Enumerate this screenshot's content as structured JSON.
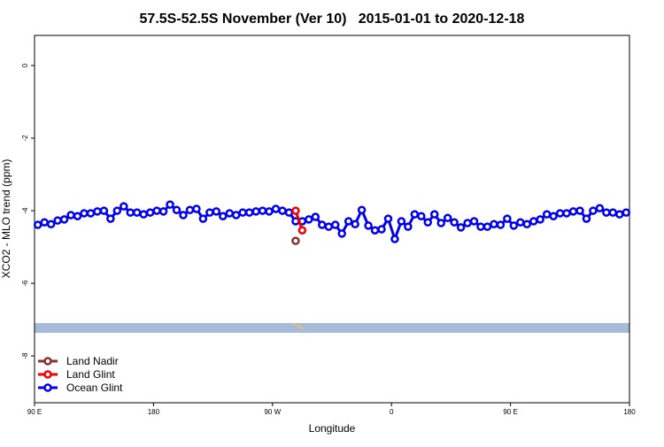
{
  "chart_data": {
    "type": "line",
    "title": "57.5S-52.5S November (Ver 10)   2015-01-01 to 2020-12-18",
    "xlabel": "Longitude",
    "ylabel": "XCO2 - MLO trend (ppm)",
    "xlim": [
      90,
      540
    ],
    "ylim": [
      -9.29,
      0.83
    ],
    "xticks": [
      {
        "value": 90,
        "label": "90 E"
      },
      {
        "value": 180,
        "label": "180"
      },
      {
        "value": 270,
        "label": "90 W"
      },
      {
        "value": 360,
        "label": "0"
      },
      {
        "value": 450,
        "label": "90 E"
      },
      {
        "value": 540,
        "label": "180"
      }
    ],
    "yticks": [
      0,
      -2,
      -4,
      -6,
      -8
    ],
    "legend": "bottom-left",
    "series": [
      {
        "name": "Land Nadir",
        "color": "#8b3030",
        "x": [
          287.5
        ],
        "values": [
          -4.83
        ]
      },
      {
        "name": "Land Glint",
        "color": "#ee0000",
        "x": [
          287.5,
          292.5
        ],
        "values": [
          -4.0,
          -4.54
        ]
      },
      {
        "name": "Ocean Glint",
        "color": "#0000ee",
        "x": [
          92.5,
          97.5,
          102.5,
          107.5,
          112.5,
          117.5,
          122.5,
          127.5,
          132.5,
          137.5,
          142.5,
          147.5,
          152.5,
          157.5,
          162.5,
          167.5,
          172.5,
          177.5,
          182.5,
          187.5,
          192.5,
          197.5,
          202.5,
          207.5,
          212.5,
          217.5,
          222.5,
          227.5,
          232.5,
          237.5,
          242.5,
          247.5,
          252.5,
          257.5,
          262.5,
          267.5,
          272.5,
          277.5,
          282.5,
          287.5,
          292.5,
          297.5,
          302.5,
          307.5,
          312.5,
          317.5,
          322.5,
          327.5,
          332.5,
          337.5,
          342.5,
          347.5,
          352.5,
          357.5,
          362.5,
          367.5,
          372.5,
          377.5,
          382.5,
          387.5,
          392.5,
          397.5,
          402.5,
          407.5,
          412.5,
          417.5,
          422.5,
          427.5,
          432.5,
          437.5,
          442.5,
          447.5,
          452.5,
          457.5,
          462.5,
          467.5,
          472.5,
          477.5,
          482.5,
          487.5,
          492.5,
          497.5,
          502.5,
          507.5,
          512.5,
          517.5,
          522.5,
          527.5,
          532.5,
          537.5
        ],
        "values": [
          -4.39,
          -4.32,
          -4.37,
          -4.27,
          -4.24,
          -4.12,
          -4.15,
          -4.07,
          -4.07,
          -4.02,
          -4.0,
          -4.22,
          -4.0,
          -3.88,
          -4.05,
          -4.05,
          -4.1,
          -4.05,
          -4.0,
          -4.02,
          -3.83,
          -3.98,
          -4.12,
          -3.98,
          -3.95,
          -4.22,
          -4.05,
          -4.02,
          -4.15,
          -4.07,
          -4.12,
          -4.05,
          -4.05,
          -4.02,
          -4.0,
          -4.02,
          -3.95,
          -4.0,
          -4.05,
          -4.29,
          -4.29,
          -4.24,
          -4.17,
          -4.39,
          -4.44,
          -4.39,
          -4.63,
          -4.29,
          -4.37,
          -3.98,
          -4.41,
          -4.54,
          -4.51,
          -4.22,
          -4.78,
          -4.29,
          -4.44,
          -4.1,
          -4.15,
          -4.32,
          -4.1,
          -4.34,
          -4.2,
          -4.32,
          -4.46,
          -4.34,
          -4.29,
          -4.44,
          -4.44,
          -4.37,
          -4.39,
          -4.22,
          -4.41,
          -4.32,
          -4.37,
          -4.29,
          -4.24,
          -4.1,
          -4.15,
          -4.07,
          -4.07,
          -4.02,
          -4.0,
          -4.22,
          -4.0,
          -3.93,
          -4.05,
          -4.05,
          -4.1,
          -4.05
        ]
      }
    ]
  }
}
